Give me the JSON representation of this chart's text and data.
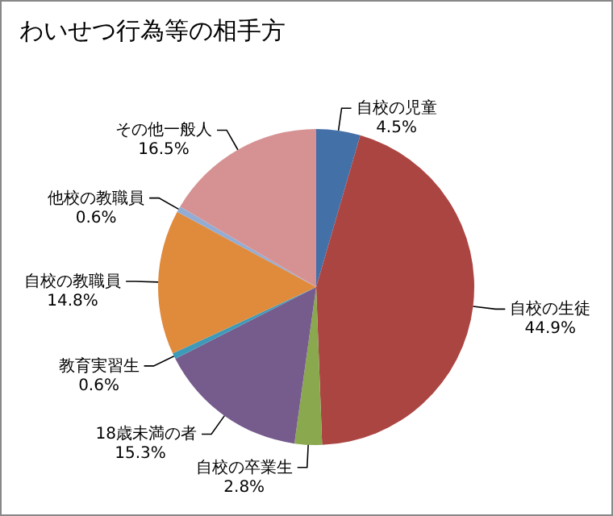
{
  "chart_data": {
    "type": "pie",
    "title": "わいせつ行為等の相手方",
    "categories": [
      "自校の児童",
      "自校の生徒",
      "自校の卒業生",
      "18歳未満の者",
      "教育実習生",
      "自校の教職員",
      "他校の教職員",
      "その他一般人"
    ],
    "values": [
      4.5,
      44.9,
      2.8,
      15.3,
      0.6,
      14.8,
      0.6,
      16.5
    ],
    "value_labels": [
      "4.5%",
      "44.9%",
      "2.8%",
      "15.3%",
      "0.6%",
      "14.8%",
      "0.6%",
      "16.5%"
    ],
    "colors": [
      "#4470a8",
      "#ab4542",
      "#8aa84e",
      "#765b8d",
      "#3d9ab8",
      "#e08a3c",
      "#93acd4",
      "#d69293"
    ],
    "legend": false
  }
}
